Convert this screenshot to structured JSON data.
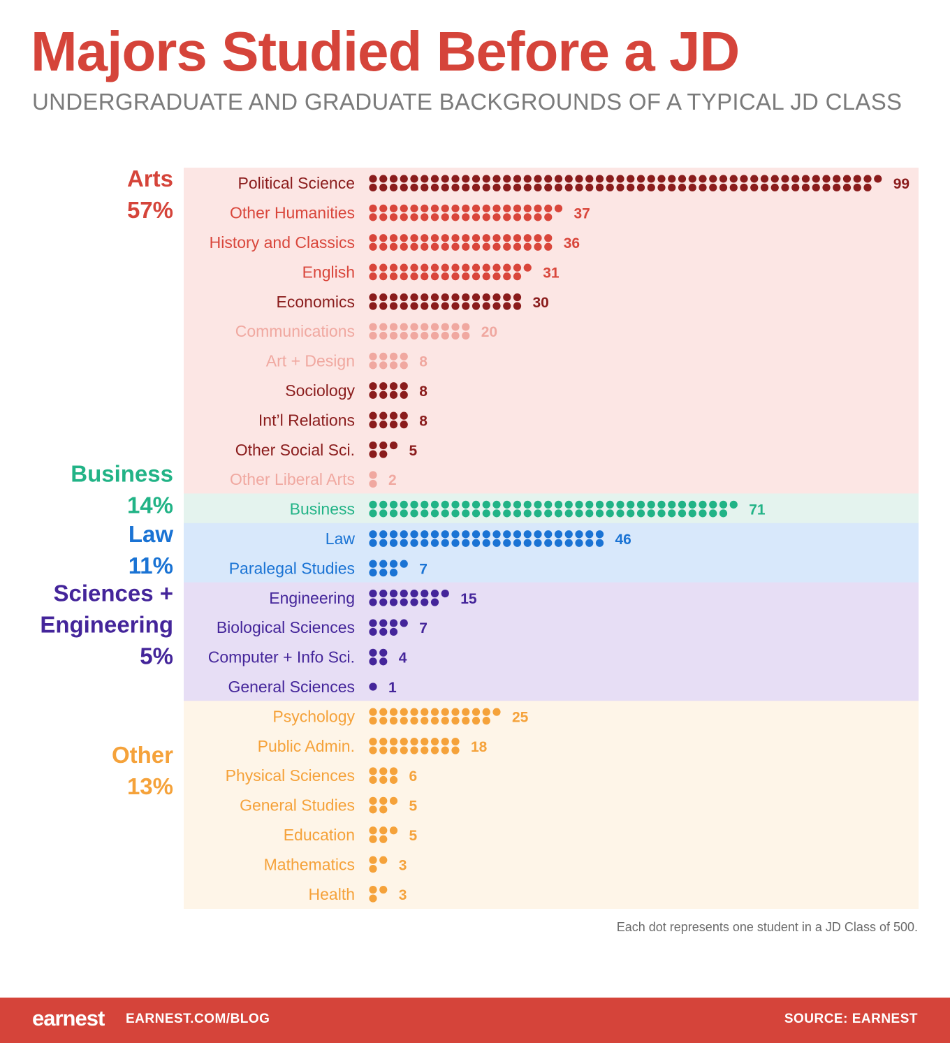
{
  "title": "Majors Studied Before a JD",
  "subtitle": "UNDERGRADUATE AND GRADUATE BACKGROUNDS OF A TYPICAL JD CLASS",
  "footnote": "Each dot represents one student in a JD Class of 500.",
  "footer": {
    "logo": "earnest",
    "url": "EARNEST.COM/BLOG",
    "source": "SOURCE: EARNEST"
  },
  "colors": {
    "title": "#d5443a",
    "arts_label": "#d5443a",
    "arts_bg": "#fce6e4",
    "arts_dark": "#8a1c1c",
    "arts_mid": "#d9463b",
    "arts_light": "#f0a8a0",
    "business": "#21b386",
    "business_bg": "#e4f3ee",
    "law": "#1a73d4",
    "law_bg": "#d8e8fb",
    "sci": "#44259a",
    "sci_bg": "#e7def5",
    "other": "#f5a23a",
    "other_bg": "#fef5e8"
  },
  "chart_data": {
    "type": "dot-plot",
    "title": "Majors Studied Before a JD",
    "unit": "students (one dot = one student, class of 500)",
    "categories": [
      {
        "name": "Arts",
        "pct_label": "57%",
        "color": "#d5443a",
        "bg": "#fce6e4",
        "majors": [
          {
            "name": "Political Science",
            "value": 99,
            "color": "#8a1c1c"
          },
          {
            "name": "Other Humanities",
            "value": 37,
            "color": "#d9463b"
          },
          {
            "name": "History and Classics",
            "value": 36,
            "color": "#d9463b"
          },
          {
            "name": "English",
            "value": 31,
            "color": "#d9463b"
          },
          {
            "name": "Economics",
            "value": 30,
            "color": "#8a1c1c"
          },
          {
            "name": "Communications",
            "value": 20,
            "color": "#f0a8a0"
          },
          {
            "name": "Art + Design",
            "value": 8,
            "color": "#f0a8a0"
          },
          {
            "name": "Sociology",
            "value": 8,
            "color": "#8a1c1c"
          },
          {
            "name": "Int’l Relations",
            "value": 8,
            "color": "#8a1c1c"
          },
          {
            "name": "Other Social Sci.",
            "value": 5,
            "color": "#8a1c1c"
          },
          {
            "name": "Other Liberal Arts",
            "value": 2,
            "color": "#f0a8a0"
          }
        ]
      },
      {
        "name": "Business",
        "pct_label": "14%",
        "color": "#21b386",
        "bg": "#e4f3ee",
        "majors": [
          {
            "name": "Business",
            "value": 71,
            "color": "#21b386"
          }
        ]
      },
      {
        "name": "Law",
        "pct_label": "11%",
        "color": "#1a73d4",
        "bg": "#d8e8fb",
        "majors": [
          {
            "name": "Law",
            "value": 46,
            "color": "#1a73d4"
          },
          {
            "name": "Paralegal Studies",
            "value": 7,
            "color": "#1a73d4"
          }
        ]
      },
      {
        "name": "Sciences + Engineering",
        "name_lines": [
          "Sciences +",
          "Engineering"
        ],
        "pct_label": "5%",
        "color": "#44259a",
        "bg": "#e7def5",
        "majors": [
          {
            "name": "Engineering",
            "value": 15,
            "color": "#44259a"
          },
          {
            "name": "Biological Sciences",
            "value": 7,
            "color": "#44259a"
          },
          {
            "name": "Computer + Info Sci.",
            "value": 4,
            "color": "#44259a"
          },
          {
            "name": "General Sciences",
            "value": 1,
            "color": "#44259a"
          }
        ]
      },
      {
        "name": "Other",
        "pct_label": "13%",
        "color": "#f5a23a",
        "bg": "#fef5e8",
        "majors": [
          {
            "name": "Psychology",
            "value": 25,
            "color": "#f5a23a"
          },
          {
            "name": "Public Admin.",
            "value": 18,
            "color": "#f5a23a"
          },
          {
            "name": "Physical Sciences",
            "value": 6,
            "color": "#f5a23a"
          },
          {
            "name": "General Studies",
            "value": 5,
            "color": "#f5a23a"
          },
          {
            "name": "Education",
            "value": 5,
            "color": "#f5a23a"
          },
          {
            "name": "Mathematics",
            "value": 3,
            "color": "#f5a23a"
          },
          {
            "name": "Health",
            "value": 3,
            "color": "#f5a23a"
          }
        ]
      }
    ]
  }
}
